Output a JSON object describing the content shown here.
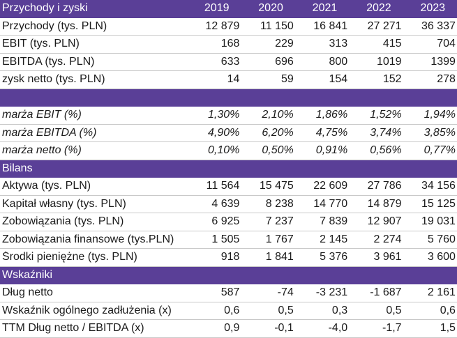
{
  "header": {
    "title": "Przychody i zyski",
    "years": [
      "2019",
      "2020",
      "2021",
      "2022",
      "2023"
    ]
  },
  "income": [
    {
      "label": "Przychody (tys. PLN)",
      "values": [
        "12 879",
        "11 150",
        "16 841",
        "27 271",
        "36 337"
      ]
    },
    {
      "label": "EBIT (tys. PLN)",
      "values": [
        "168",
        "229",
        "313",
        "415",
        "704"
      ]
    },
    {
      "label": "EBITDA (tys. PLN)",
      "values": [
        "633",
        "696",
        "800",
        "1019",
        "1399"
      ]
    },
    {
      "label": "zysk netto (tys. PLN)",
      "values": [
        "14",
        "59",
        "154",
        "152",
        "278"
      ]
    }
  ],
  "margins": [
    {
      "label": "marża EBIT (%)",
      "values": [
        "1,30%",
        "2,10%",
        "1,86%",
        "1,52%",
        "1,94%"
      ]
    },
    {
      "label": "marża EBITDA (%)",
      "values": [
        "4,90%",
        "6,20%",
        "4,75%",
        "3,74%",
        "3,85%"
      ]
    },
    {
      "label": "marża netto (%)",
      "values": [
        "0,10%",
        "0,50%",
        "0,91%",
        "0,56%",
        "0,77%"
      ]
    }
  ],
  "balance": {
    "title": "Bilans",
    "rows": [
      {
        "label": "Aktywa (tys. PLN)",
        "values": [
          "11 564",
          "15 475",
          "22 609",
          "27 786",
          "34 156"
        ]
      },
      {
        "label": "Kapitał własny (tys. PLN)",
        "values": [
          "4 639",
          "8 238",
          "14 770",
          "14 879",
          "15 125"
        ]
      },
      {
        "label": "Zobowiązania (tys. PLN)",
        "values": [
          "6 925",
          "7 237",
          "7 839",
          "12 907",
          "19 031"
        ]
      },
      {
        "label": "Zobowiązania finansowe (tys.PLN)",
        "values": [
          "1 505",
          "1 767",
          "2 145",
          "2 274",
          "5 760"
        ]
      },
      {
        "label": "Środki pieniężne (tys. PLN)",
        "values": [
          "918",
          "1 841",
          "5 376",
          "3 961",
          "3 600"
        ]
      }
    ]
  },
  "indicators": {
    "title": "Wskaźniki",
    "rows": [
      {
        "label": "Dług netto",
        "values": [
          "587",
          "-74",
          "-3 231",
          "-1 687",
          "2 161"
        ]
      },
      {
        "label": "Wskaźnik ogólnego zadłużenia (x)",
        "values": [
          "0,6",
          "0,5",
          "0,3",
          "0,5",
          "0,6"
        ]
      },
      {
        "label": "TTM Dług netto / EBITDA (x)",
        "values": [
          "0,9",
          "-0,1",
          "-4,0",
          "-1,7",
          "1,5"
        ]
      }
    ]
  },
  "colors": {
    "band": "#5a3f97",
    "text": "#1a1a1a",
    "header_text": "#ffffff"
  }
}
